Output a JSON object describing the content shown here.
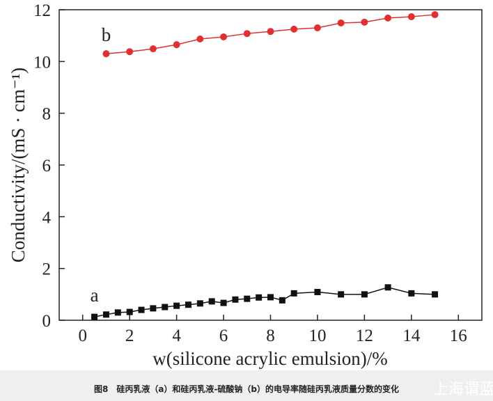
{
  "chart_data": {
    "type": "line",
    "ylabel": "Conductivity/(mS · cm⁻¹)",
    "xlabel": "w(silicone acrylic emulsion)/%",
    "caption": "图8　硅丙乳液（a）和硅丙乳液-硫酸钠（b）的电导率随硅丙乳液质量分数的变化",
    "watermark": "上海谓蓝",
    "xlim": [
      -1,
      17
    ],
    "xticks": [
      0,
      2,
      4,
      6,
      8,
      10,
      12,
      14,
      16
    ],
    "ylim": [
      0,
      12
    ],
    "yticks": [
      0,
      2,
      4,
      6,
      8,
      10,
      12
    ],
    "series": [
      {
        "name": "a",
        "color": "#111111",
        "marker": "square",
        "x": [
          0.5,
          1,
          1.5,
          2,
          2.5,
          3,
          3.5,
          4,
          4.5,
          5,
          5.5,
          6,
          6.5,
          7,
          7.5,
          8,
          8.5,
          9,
          10,
          11,
          12,
          13,
          14,
          15
        ],
        "values": [
          0.13,
          0.22,
          0.3,
          0.32,
          0.4,
          0.46,
          0.51,
          0.56,
          0.6,
          0.65,
          0.73,
          0.67,
          0.8,
          0.83,
          0.88,
          0.89,
          0.77,
          1.04,
          1.09,
          1.0,
          1.0,
          1.27,
          1.04,
          1.0
        ]
      },
      {
        "name": "b",
        "color": "#e03030",
        "marker": "circle",
        "x": [
          1,
          2,
          3,
          4,
          5,
          6,
          7,
          8,
          9,
          10,
          11,
          12,
          13,
          14,
          15
        ],
        "values": [
          10.3,
          10.38,
          10.49,
          10.65,
          10.87,
          10.95,
          11.08,
          11.16,
          11.25,
          11.3,
          11.49,
          11.52,
          11.68,
          11.73,
          11.81
        ]
      }
    ]
  }
}
